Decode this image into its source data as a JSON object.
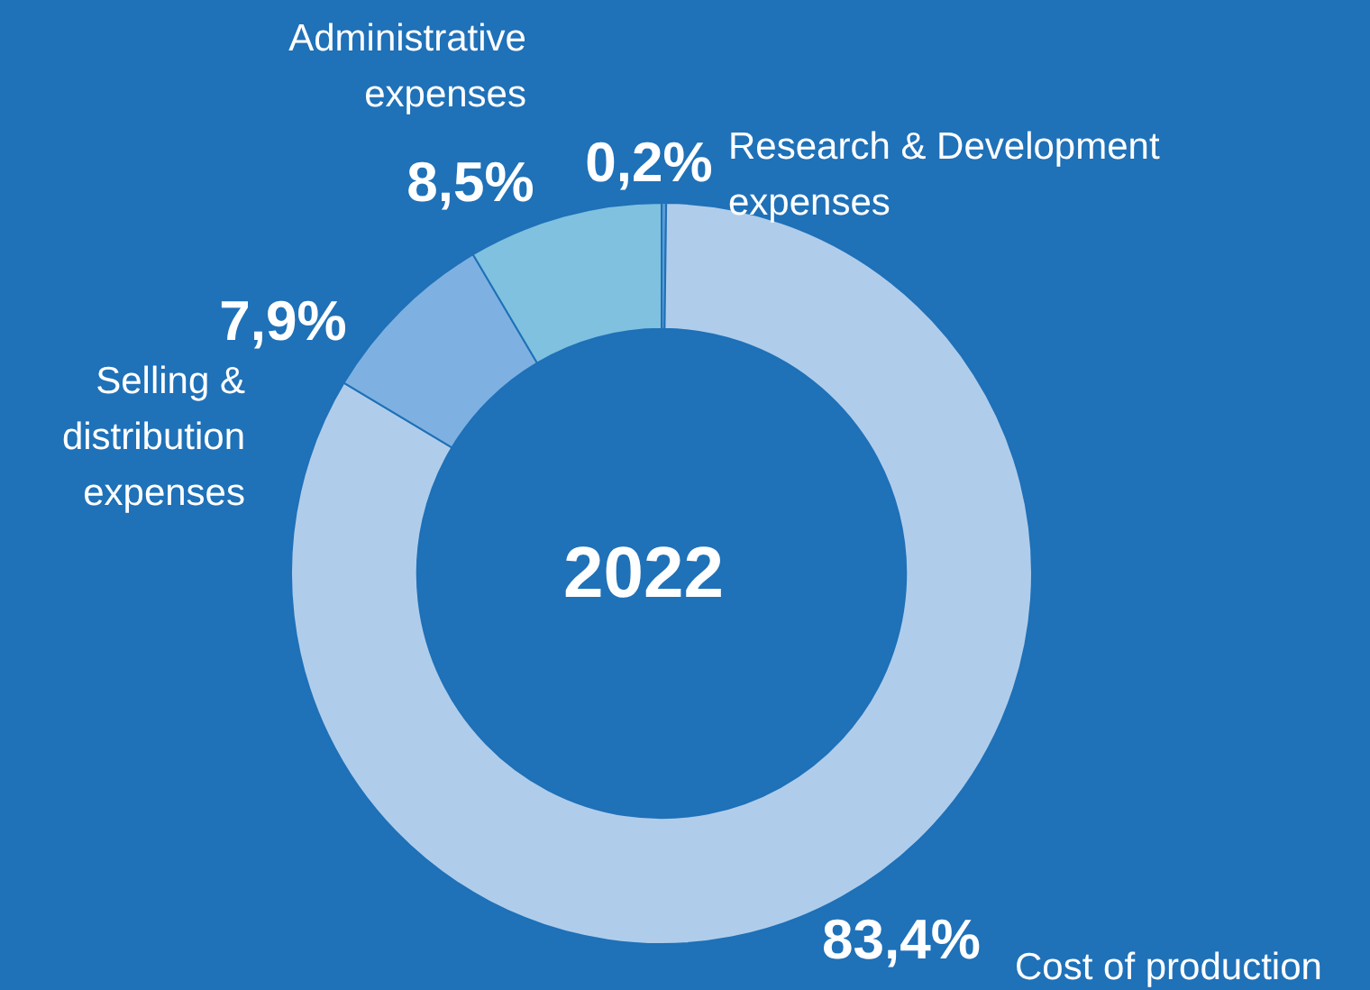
{
  "chart_data": {
    "type": "donut",
    "title": "2022",
    "categories": [
      "Research & Development expenses",
      "Cost of production",
      "Selling & distribution expenses",
      "Administrative expenses"
    ],
    "values": [
      0.2,
      83.4,
      7.9,
      8.5
    ],
    "value_labels": [
      "0,2%",
      "83,4%",
      "7,9%",
      "8,5%"
    ],
    "colors": [
      "#5b9bd5",
      "#afcdeb",
      "#7eb1e1",
      "#7fc1df"
    ],
    "legend": false
  }
}
